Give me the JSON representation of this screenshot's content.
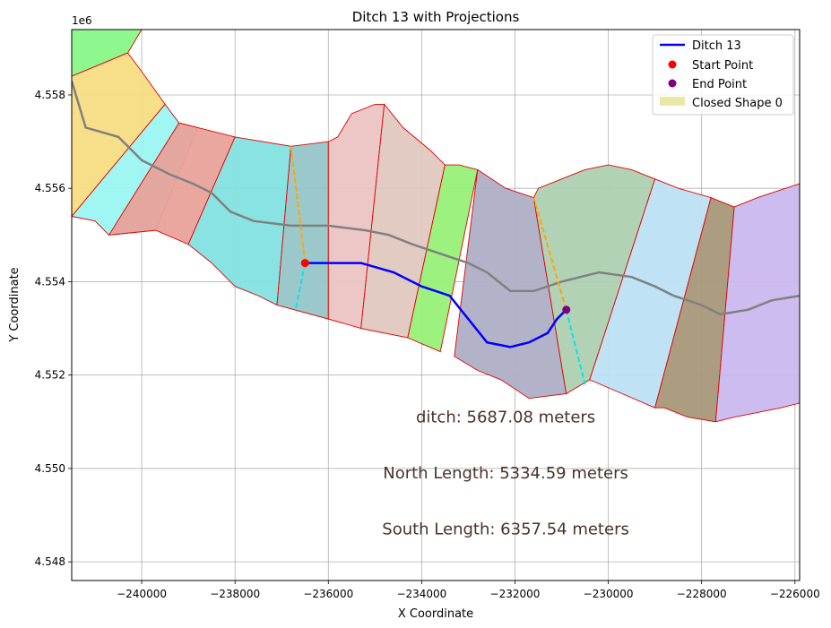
{
  "chart_data": {
    "type": "map-plot",
    "title": "Ditch 13 with Projections",
    "xlabel": "X Coordinate",
    "ylabel": "Y Coordinate",
    "y_offset_label": "1e6",
    "xlim": [
      -241500,
      -225900
    ],
    "ylim": [
      4547600,
      4559400
    ],
    "xticks": [
      -240000,
      -238000,
      -236000,
      -234000,
      -232000,
      -230000,
      -228000,
      -226000
    ],
    "xtick_labels": [
      "−240000",
      "−238000",
      "−236000",
      "−234000",
      "−232000",
      "−230000",
      "−228000",
      "−226000"
    ],
    "yticks": [
      4548000,
      4550000,
      4552000,
      4554000,
      4556000,
      4558000
    ],
    "ytick_labels": [
      "4.548",
      "4.550",
      "4.552",
      "4.554",
      "4.556",
      "4.558"
    ],
    "grid": true,
    "legend": {
      "position": "top-right",
      "entries": [
        {
          "label": "Ditch 13",
          "kind": "line",
          "color": "#0000ff"
        },
        {
          "label": "Start Point",
          "kind": "marker",
          "color": "#ff0000"
        },
        {
          "label": "End Point",
          "kind": "marker",
          "color": "#800080"
        },
        {
          "label": "Closed Shape 0",
          "kind": "patch",
          "color": "#e4e088"
        }
      ]
    },
    "polygons": [
      {
        "color": "#88f888",
        "points": [
          [
            -241500,
            4559400
          ],
          [
            -240000,
            4559400
          ],
          [
            -240300,
            4558900
          ],
          [
            -241500,
            4558400
          ]
        ]
      },
      {
        "color": "#f6dd82",
        "points": [
          [
            -241500,
            4558400
          ],
          [
            -240300,
            4558900
          ],
          [
            -240000,
            4558500
          ],
          [
            -239500,
            4557800
          ],
          [
            -241500,
            4555400
          ]
        ]
      },
      {
        "color": "#9af6f2",
        "points": [
          [
            -241500,
            4555400
          ],
          [
            -239500,
            4557800
          ],
          [
            -239200,
            4557400
          ],
          [
            -238800,
            4557300
          ],
          [
            -239700,
            4555100
          ],
          [
            -240700,
            4555000
          ],
          [
            -241000,
            4555300
          ]
        ]
      },
      {
        "color": "#e8a29a",
        "points": [
          [
            -239200,
            4557400
          ],
          [
            -238800,
            4557300
          ],
          [
            -238000,
            4557100
          ],
          [
            -239000,
            4554800
          ],
          [
            -239700,
            4555100
          ],
          [
            -240700,
            4555000
          ]
        ]
      },
      {
        "color": "#84e2e2",
        "points": [
          [
            -238000,
            4557100
          ],
          [
            -236800,
            4556900
          ],
          [
            -237100,
            4553500
          ],
          [
            -237500,
            4553700
          ],
          [
            -238000,
            4553900
          ],
          [
            -238500,
            4554400
          ],
          [
            -239000,
            4554800
          ]
        ]
      },
      {
        "color": "#96c6c8",
        "points": [
          [
            -236800,
            4556900
          ],
          [
            -236000,
            4557000
          ],
          [
            -236000,
            4553200
          ],
          [
            -237100,
            4553500
          ]
        ]
      },
      {
        "color": "#ecc4c2",
        "points": [
          [
            -236000,
            4557000
          ],
          [
            -235800,
            4557100
          ],
          [
            -235500,
            4557600
          ],
          [
            -235000,
            4557800
          ],
          [
            -234800,
            4557800
          ],
          [
            -235300,
            4553000
          ],
          [
            -236000,
            4553200
          ]
        ]
      },
      {
        "color": "#dfc8c0",
        "points": [
          [
            -234800,
            4557800
          ],
          [
            -234400,
            4557300
          ],
          [
            -233800,
            4556800
          ],
          [
            -233500,
            4556500
          ],
          [
            -234300,
            4552800
          ],
          [
            -235300,
            4553000
          ]
        ]
      },
      {
        "color": "#98f078",
        "points": [
          [
            -233500,
            4556500
          ],
          [
            -233200,
            4556500
          ],
          [
            -232800,
            4556400
          ],
          [
            -233600,
            4552500
          ],
          [
            -234300,
            4552800
          ]
        ]
      },
      {
        "color": "#aeaec6",
        "points": [
          [
            -232800,
            4556400
          ],
          [
            -232200,
            4556000
          ],
          [
            -231600,
            4555800
          ],
          [
            -230900,
            4551600
          ],
          [
            -231700,
            4551500
          ],
          [
            -232300,
            4551900
          ],
          [
            -232800,
            4552100
          ],
          [
            -233300,
            4552400
          ]
        ]
      },
      {
        "color": "#aed0b2",
        "points": [
          [
            -231600,
            4555800
          ],
          [
            -231500,
            4556000
          ],
          [
            -231000,
            4556200
          ],
          [
            -230500,
            4556400
          ],
          [
            -230000,
            4556500
          ],
          [
            -229500,
            4556400
          ],
          [
            -229000,
            4556200
          ],
          [
            -230400,
            4551900
          ],
          [
            -230900,
            4551600
          ]
        ]
      },
      {
        "color": "#bce2f4",
        "points": [
          [
            -229000,
            4556200
          ],
          [
            -228500,
            4556000
          ],
          [
            -227800,
            4555800
          ],
          [
            -229000,
            4551300
          ],
          [
            -229700,
            4551600
          ],
          [
            -230400,
            4551900
          ]
        ]
      },
      {
        "color": "#a8987a",
        "points": [
          [
            -227800,
            4555800
          ],
          [
            -227300,
            4555600
          ],
          [
            -227700,
            4551000
          ],
          [
            -228300,
            4551100
          ],
          [
            -228800,
            4551300
          ],
          [
            -229000,
            4551300
          ]
        ]
      },
      {
        "color": "#cab8ee",
        "points": [
          [
            -227300,
            4555600
          ],
          [
            -226800,
            4555800
          ],
          [
            -226200,
            4556000
          ],
          [
            -225900,
            4556100
          ],
          [
            -225900,
            4551400
          ],
          [
            -226300,
            4551300
          ],
          [
            -226800,
            4551200
          ],
          [
            -227300,
            4551100
          ],
          [
            -227700,
            4551000
          ]
        ]
      }
    ],
    "centerline": {
      "color": "#808080",
      "points": [
        [
          -241500,
          4558300
        ],
        [
          -241200,
          4557300
        ],
        [
          -240500,
          4557100
        ],
        [
          -240300,
          4556900
        ],
        [
          -240000,
          4556600
        ],
        [
          -239400,
          4556300
        ],
        [
          -238900,
          4556100
        ],
        [
          -238500,
          4555900
        ],
        [
          -238100,
          4555500
        ],
        [
          -237600,
          4555300
        ],
        [
          -236800,
          4555200
        ],
        [
          -236000,
          4555200
        ],
        [
          -235200,
          4555100
        ],
        [
          -234700,
          4555000
        ],
        [
          -234200,
          4554800
        ],
        [
          -233600,
          4554600
        ],
        [
          -233000,
          4554400
        ],
        [
          -232600,
          4554200
        ],
        [
          -232100,
          4553800
        ],
        [
          -231600,
          4553800
        ],
        [
          -231000,
          4554000
        ],
        [
          -230600,
          4554100
        ],
        [
          -230200,
          4554200
        ],
        [
          -229500,
          4554100
        ],
        [
          -229000,
          4553900
        ],
        [
          -228600,
          4553700
        ],
        [
          -228000,
          4553500
        ],
        [
          -227600,
          4553300
        ],
        [
          -227000,
          4553400
        ],
        [
          -226500,
          4553600
        ],
        [
          -225900,
          4553700
        ]
      ]
    },
    "ditch": {
      "name": "Ditch 13",
      "color": "#0000ff",
      "points": [
        [
          -236500,
          4554400
        ],
        [
          -235300,
          4554400
        ],
        [
          -234600,
          4554200
        ],
        [
          -234000,
          4553900
        ],
        [
          -233400,
          4553700
        ],
        [
          -232600,
          4552700
        ],
        [
          -232100,
          4552600
        ],
        [
          -231700,
          4552700
        ],
        [
          -231300,
          4552900
        ],
        [
          -231100,
          4553200
        ],
        [
          -230900,
          4553400
        ]
      ]
    },
    "start_point": {
      "x": -236500,
      "y": 4554400,
      "color": "#ff0000"
    },
    "end_point": {
      "x": -230900,
      "y": 4553400,
      "color": "#800080"
    },
    "projections_north": {
      "color": "#ffa500",
      "segments": [
        [
          [
            -236500,
            4554400
          ],
          [
            -236800,
            4556900
          ]
        ],
        [
          [
            -230900,
            4553400
          ],
          [
            -231600,
            4555800
          ]
        ]
      ]
    },
    "projections_south": {
      "color": "#00e5ee",
      "segments": [
        [
          [
            -236500,
            4554400
          ],
          [
            -236700,
            4553400
          ]
        ],
        [
          [
            -230900,
            4553400
          ],
          [
            -230500,
            4551800
          ]
        ]
      ]
    },
    "annotations": [
      {
        "text": "ditch: 5687.08 meters",
        "x": -232200,
        "y": 4551100
      },
      {
        "text": "North Length: 5334.59 meters",
        "x": -232200,
        "y": 4549900
      },
      {
        "text": "South Length: 6357.54 meters",
        "x": -232200,
        "y": 4548700
      }
    ]
  }
}
